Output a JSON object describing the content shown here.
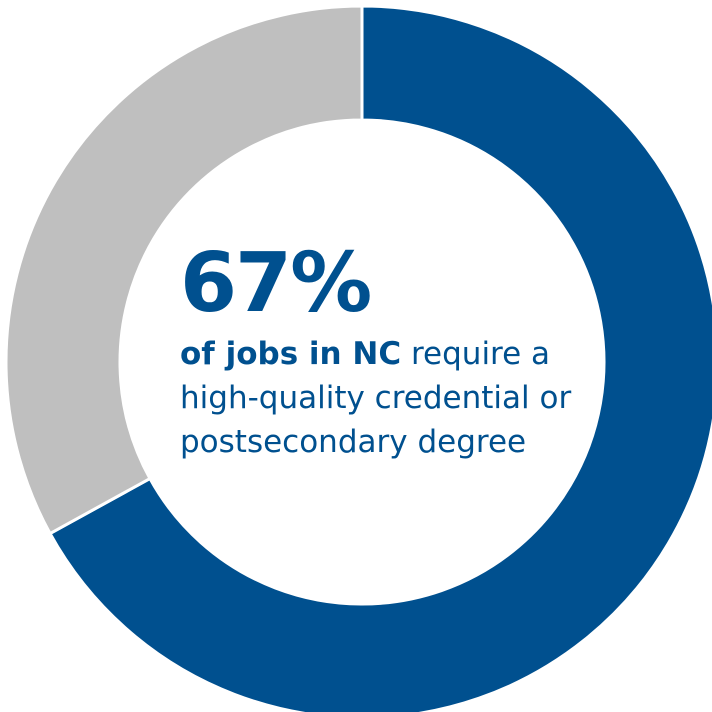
{
  "chart_data": {
    "type": "pie",
    "variant": "donut",
    "slices": [
      {
        "value": 67,
        "color": "#00508f"
      },
      {
        "value": 33,
        "color": "#bfbfbf"
      }
    ],
    "center_value": "67%",
    "center_caption_bold": "of jobs in NC",
    "center_caption_rest": " require a high-quality credential or postsecondary degree"
  }
}
